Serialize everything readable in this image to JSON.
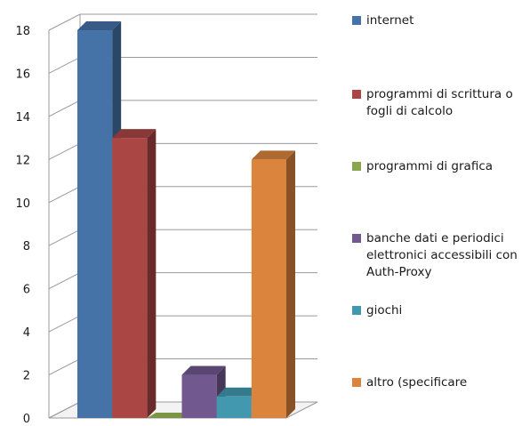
{
  "chart_data": {
    "type": "bar",
    "three_d": true,
    "categories": [
      "internet",
      "programmi di scrittura o fogli di calcolo",
      "programmi di grafica",
      "banche dati e periodici elettronici accessibili con Auth-Proxy",
      "giochi",
      "altro (specificare"
    ],
    "values": [
      18,
      13,
      0,
      2,
      1,
      12
    ],
    "colors": [
      "#4572A7",
      "#AA4643",
      "#89A54E",
      "#71588F",
      "#4198AF",
      "#DB843D"
    ],
    "ylim": [
      0,
      18
    ],
    "yticks": [
      "0",
      "2",
      "4",
      "6",
      "8",
      "10",
      "12",
      "14",
      "16",
      "18"
    ],
    "grid": true,
    "legend_position": "right",
    "title": "",
    "xlabel": "",
    "ylabel": ""
  },
  "legend": {
    "items": [
      {
        "label": "internet",
        "color": "#4572A7"
      },
      {
        "label": "programmi di scrittura o fogli di calcolo",
        "color": "#AA4643"
      },
      {
        "label": "programmi di grafica",
        "color": "#89A54E"
      },
      {
        "label": "banche dati e periodici elettronici accessibili con Auth-Proxy",
        "color": "#71588F"
      },
      {
        "label": "giochi",
        "color": "#4198AF"
      },
      {
        "label": "altro (specificare",
        "color": "#DB843D"
      }
    ]
  }
}
